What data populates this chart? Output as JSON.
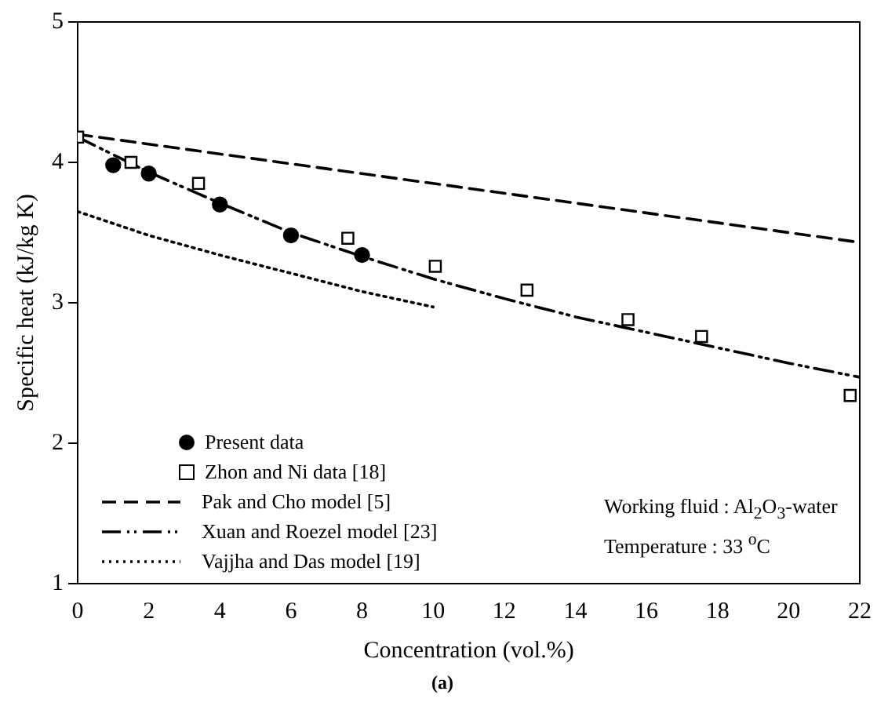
{
  "chart_data": {
    "type": "line",
    "xlabel": "Concentration (vol.%)",
    "ylabel": "Specific heat (kJ/kg K)",
    "xlim": [
      0,
      22
    ],
    "xticks": [
      0,
      2,
      4,
      6,
      8,
      10,
      12,
      14,
      16,
      18,
      20,
      22
    ],
    "ylim": [
      1,
      5
    ],
    "yticks": [
      1,
      2,
      3,
      4,
      5
    ],
    "legend": "bottom left",
    "grid": false,
    "annotations": [
      "Working fluid : Al$_{2}$O$_{3}$-water",
      "Temperature : 33 $^{o}$C",
      "(a)"
    ],
    "series": [
      {
        "name": "Present data",
        "type": "scatter",
        "marker": "circle",
        "color": "#000000",
        "x": [
          1,
          2,
          4,
          6,
          8
        ],
        "values": [
          3.98,
          3.92,
          3.7,
          3.48,
          3.34
        ]
      },
      {
        "name": "Zhon and Ni data [18]",
        "type": "scatter",
        "marker": "square",
        "color": "#000000",
        "x": [
          0,
          1.5,
          3.4,
          7.6,
          10.06,
          12.64,
          15.48,
          17.55,
          21.73
        ],
        "values": [
          4.18,
          4.0,
          3.85,
          3.46,
          3.26,
          3.09,
          2.88,
          2.76,
          2.34
        ]
      },
      {
        "name": " Pak and Cho model [5]",
        "type": "line",
        "line_style": "dashed",
        "marker": "none",
        "color": "#000000",
        "x": [
          0,
          22
        ],
        "values": [
          4.2,
          3.43
        ]
      },
      {
        "name": "Xuan and Roezel model [23]",
        "type": "line",
        "line_style": "dashdotdot",
        "marker": "none",
        "color": "#000000",
        "x": [
          0,
          2,
          4,
          6,
          8,
          10,
          12,
          14,
          16,
          18,
          20,
          22
        ],
        "values": [
          4.18,
          3.93,
          3.71,
          3.5,
          3.33,
          3.17,
          3.03,
          2.9,
          2.79,
          2.68,
          2.57,
          2.47
        ]
      },
      {
        "name": "Vajjha and Das model [19]",
        "type": "line",
        "line_style": "dotted",
        "marker": "none",
        "color": "#000000",
        "x": [
          0,
          2,
          4,
          6,
          8,
          10
        ],
        "values": [
          3.65,
          3.48,
          3.34,
          3.21,
          3.08,
          2.97
        ]
      }
    ]
  }
}
